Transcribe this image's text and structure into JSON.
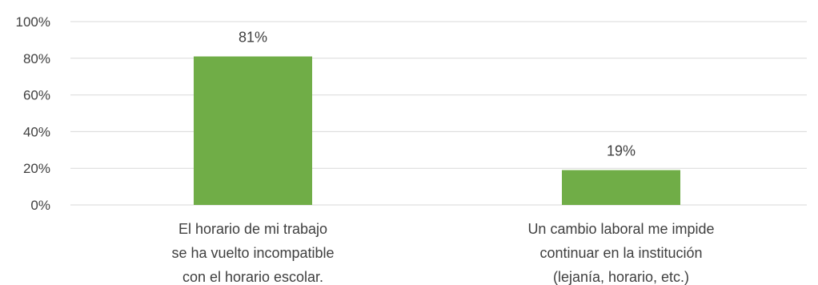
{
  "chart_data": {
    "type": "bar",
    "categories": [
      [
        "El horario de mi trabajo",
        "se ha vuelto incompatible",
        "con el horario escolar."
      ],
      [
        "Un cambio laboral me impide",
        "continuar en la institución",
        "(lejanía, horario, etc.)"
      ]
    ],
    "values": [
      81,
      19
    ],
    "data_labels": [
      "81%",
      "19%"
    ],
    "ylim": [
      0,
      100
    ],
    "yticks": [
      0,
      20,
      40,
      60,
      80,
      100
    ],
    "ytick_labels": [
      "0%",
      "20%",
      "40%",
      "60%",
      "80%",
      "100%"
    ],
    "grid": true,
    "legend": "none",
    "bar_color": "#70ad47",
    "grid_color": "#d9d9d9",
    "text_color": "#404040"
  }
}
